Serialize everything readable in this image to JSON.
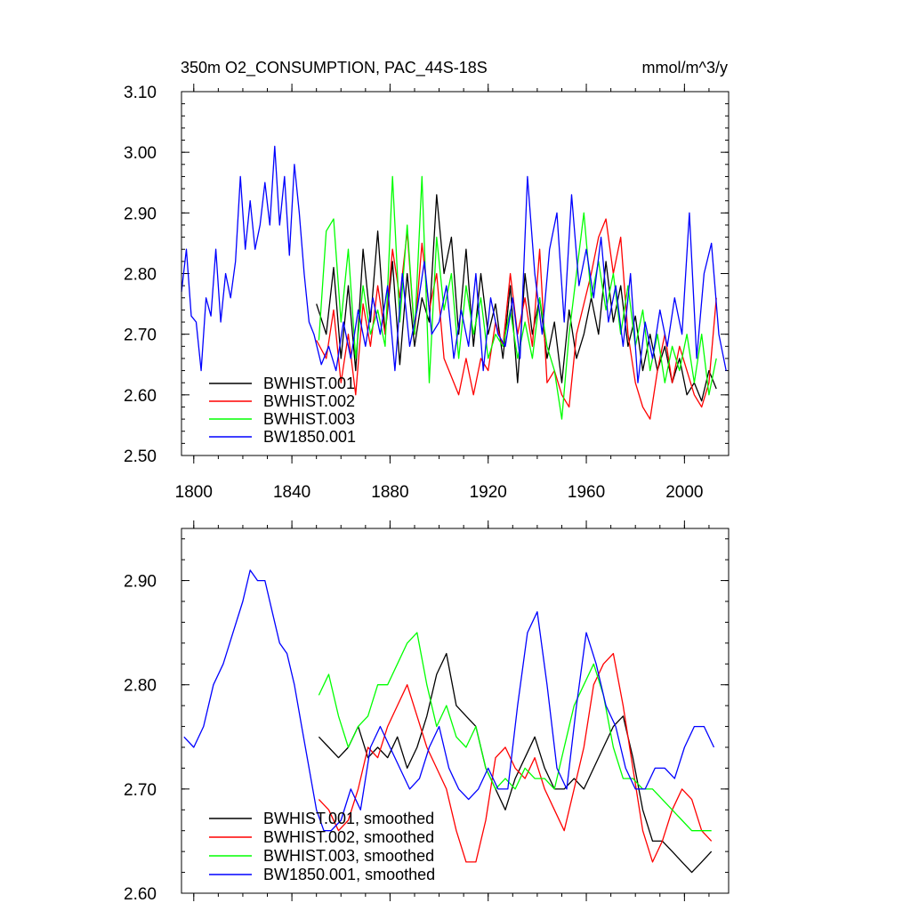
{
  "chart_data": [
    {
      "type": "line",
      "title": "350m O2_CONSUMPTION, PAC_44S-18S",
      "units_label": "mmol/m^3/y",
      "xlim": [
        1795,
        2018
      ],
      "ylim": [
        2.5,
        3.1
      ],
      "xticks": [
        1800,
        1840,
        1880,
        1920,
        1960,
        2000
      ],
      "xtick_labels": [
        "1800",
        "1840",
        "1880",
        "1920",
        "1960",
        "2000"
      ],
      "yticks": [
        2.5,
        2.6,
        2.7,
        2.8,
        2.9,
        3.0,
        3.1
      ],
      "ytick_labels": [
        "2.50",
        "2.60",
        "2.70",
        "2.80",
        "2.90",
        "3.00",
        "3.10"
      ],
      "legend_position": "bottom-left",
      "series": [
        {
          "name": "BWHIST.001",
          "color": "#000000",
          "x": [
            1850,
            1854,
            1857,
            1860,
            1863,
            1866,
            1869,
            1872,
            1875,
            1878,
            1881,
            1884,
            1887,
            1890,
            1893,
            1896,
            1899,
            1902,
            1905,
            1908,
            1911,
            1914,
            1917,
            1920,
            1923,
            1926,
            1929,
            1932,
            1935,
            1938,
            1941,
            1944,
            1947,
            1950,
            1953,
            1956,
            1959,
            1962,
            1965,
            1968,
            1971,
            1974,
            1977,
            1980,
            1983,
            1986,
            1989,
            1992,
            1995,
            1998,
            2001,
            2004,
            2007,
            2010,
            2013
          ],
          "values": [
            2.75,
            2.7,
            2.81,
            2.66,
            2.78,
            2.64,
            2.84,
            2.72,
            2.87,
            2.7,
            2.82,
            2.65,
            2.8,
            2.68,
            2.76,
            2.72,
            2.93,
            2.8,
            2.86,
            2.7,
            2.84,
            2.68,
            2.8,
            2.7,
            2.75,
            2.66,
            2.78,
            2.62,
            2.8,
            2.7,
            2.76,
            2.66,
            2.72,
            2.62,
            2.74,
            2.66,
            2.7,
            2.76,
            2.7,
            2.82,
            2.72,
            2.78,
            2.68,
            2.73,
            2.64,
            2.7,
            2.64,
            2.68,
            2.62,
            2.66,
            2.6,
            2.62,
            2.59,
            2.64,
            2.61
          ]
        },
        {
          "name": "BWHIST.002",
          "color": "#ff0000",
          "x": [
            1850,
            1854,
            1857,
            1860,
            1863,
            1866,
            1869,
            1872,
            1875,
            1878,
            1881,
            1884,
            1887,
            1890,
            1893,
            1896,
            1899,
            1902,
            1905,
            1908,
            1911,
            1914,
            1917,
            1920,
            1923,
            1926,
            1929,
            1932,
            1935,
            1938,
            1941,
            1944,
            1947,
            1950,
            1953,
            1956,
            1959,
            1962,
            1965,
            1968,
            1971,
            1974,
            1977,
            1980,
            1983,
            1986,
            1989,
            1992,
            1995,
            1998,
            2001,
            2004,
            2007,
            2010,
            2013
          ],
          "values": [
            2.69,
            2.66,
            2.74,
            2.62,
            2.7,
            2.6,
            2.75,
            2.68,
            2.78,
            2.7,
            2.84,
            2.76,
            2.87,
            2.7,
            2.85,
            2.74,
            2.8,
            2.66,
            2.63,
            2.6,
            2.66,
            2.6,
            2.66,
            2.64,
            2.72,
            2.68,
            2.8,
            2.7,
            2.76,
            2.68,
            2.84,
            2.62,
            2.64,
            2.6,
            2.58,
            2.7,
            2.75,
            2.8,
            2.86,
            2.89,
            2.8,
            2.86,
            2.7,
            2.62,
            2.58,
            2.56,
            2.64,
            2.7,
            2.62,
            2.68,
            2.64,
            2.6,
            2.58,
            2.62,
            2.76
          ]
        },
        {
          "name": "BWHIST.003",
          "color": "#00ff00",
          "x": [
            1851,
            1854,
            1857,
            1860,
            1863,
            1866,
            1869,
            1872,
            1875,
            1878,
            1881,
            1884,
            1887,
            1890,
            1893,
            1896,
            1899,
            1902,
            1905,
            1908,
            1911,
            1914,
            1917,
            1920,
            1923,
            1926,
            1929,
            1932,
            1935,
            1938,
            1941,
            1944,
            1947,
            1950,
            1953,
            1956,
            1959,
            1962,
            1965,
            1968,
            1971,
            1974,
            1977,
            1980,
            1983,
            1986,
            1989,
            1992,
            1995,
            1998,
            2001,
            2004,
            2007,
            2010,
            2013
          ],
          "values": [
            2.69,
            2.87,
            2.89,
            2.72,
            2.84,
            2.66,
            2.78,
            2.7,
            2.74,
            2.68,
            2.96,
            2.72,
            2.88,
            2.7,
            2.96,
            2.62,
            2.86,
            2.74,
            2.8,
            2.66,
            2.78,
            2.7,
            2.76,
            2.66,
            2.7,
            2.68,
            2.74,
            2.66,
            2.72,
            2.66,
            2.76,
            2.68,
            2.64,
            2.56,
            2.7,
            2.8,
            2.9,
            2.76,
            2.82,
            2.74,
            2.8,
            2.7,
            2.78,
            2.68,
            2.74,
            2.64,
            2.7,
            2.62,
            2.68,
            2.64,
            2.7,
            2.62,
            2.7,
            2.6,
            2.66
          ]
        },
        {
          "name": "BW1850.001",
          "color": "#0000ff",
          "x": [
            1795,
            1797,
            1799,
            1801,
            1803,
            1805,
            1807,
            1809,
            1811,
            1813,
            1815,
            1817,
            1819,
            1821,
            1823,
            1825,
            1827,
            1829,
            1831,
            1833,
            1835,
            1837,
            1839,
            1841,
            1843,
            1845,
            1847,
            1849,
            1852,
            1855,
            1858,
            1861,
            1864,
            1867,
            1870,
            1873,
            1876,
            1879,
            1882,
            1885,
            1888,
            1891,
            1894,
            1897,
            1900,
            1903,
            1906,
            1909,
            1912,
            1915,
            1918,
            1921,
            1924,
            1927,
            1930,
            1933,
            1936,
            1939,
            1942,
            1945,
            1948,
            1951,
            1954,
            1957,
            1960,
            1963,
            1966,
            1969,
            1972,
            1975,
            1978,
            1981,
            1984,
            1987,
            1990,
            1993,
            1996,
            1999,
            2002,
            2005,
            2008,
            2011,
            2014,
            2017
          ],
          "values": [
            2.77,
            2.84,
            2.73,
            2.72,
            2.64,
            2.76,
            2.73,
            2.84,
            2.72,
            2.8,
            2.76,
            2.82,
            2.96,
            2.84,
            2.92,
            2.84,
            2.88,
            2.95,
            2.88,
            3.01,
            2.88,
            2.96,
            2.83,
            2.98,
            2.9,
            2.8,
            2.72,
            2.7,
            2.65,
            2.68,
            2.64,
            2.72,
            2.66,
            2.74,
            2.68,
            2.76,
            2.7,
            2.78,
            2.64,
            2.8,
            2.68,
            2.74,
            2.82,
            2.7,
            2.72,
            2.78,
            2.66,
            2.74,
            2.68,
            2.8,
            2.64,
            2.76,
            2.7,
            2.68,
            2.76,
            2.66,
            2.96,
            2.8,
            2.7,
            2.84,
            2.9,
            2.72,
            2.93,
            2.78,
            2.84,
            2.76,
            2.86,
            2.72,
            2.78,
            2.68,
            2.8,
            2.62,
            2.72,
            2.66,
            2.74,
            2.68,
            2.76,
            2.7,
            2.9,
            2.66,
            2.8,
            2.85,
            2.7,
            2.64
          ]
        }
      ]
    },
    {
      "type": "line",
      "title": "",
      "xlim": [
        1795,
        2018
      ],
      "ylim": [
        2.6,
        2.95
      ],
      "xticks": [
        1800,
        1840,
        1880,
        1920,
        1960,
        2000
      ],
      "yticks": [
        2.6,
        2.7,
        2.8,
        2.9
      ],
      "ytick_labels": [
        "2.60",
        "2.70",
        "2.80",
        "2.90"
      ],
      "legend_position": "bottom-left",
      "series": [
        {
          "name": "BWHIST.001, smoothed",
          "color": "#000000",
          "x": [
            1851,
            1855,
            1859,
            1863,
            1867,
            1871,
            1875,
            1879,
            1883,
            1887,
            1891,
            1895,
            1899,
            1903,
            1907,
            1911,
            1915,
            1919,
            1923,
            1927,
            1931,
            1935,
            1939,
            1943,
            1947,
            1951,
            1955,
            1959,
            1963,
            1967,
            1971,
            1975,
            1979,
            1983,
            1987,
            1991,
            1995,
            1999,
            2003,
            2007,
            2011
          ],
          "values": [
            2.75,
            2.74,
            2.73,
            2.74,
            2.76,
            2.73,
            2.74,
            2.73,
            2.75,
            2.72,
            2.74,
            2.77,
            2.81,
            2.83,
            2.78,
            2.77,
            2.76,
            2.72,
            2.7,
            2.68,
            2.71,
            2.73,
            2.75,
            2.72,
            2.7,
            2.7,
            2.71,
            2.7,
            2.72,
            2.74,
            2.76,
            2.77,
            2.73,
            2.68,
            2.65,
            2.65,
            2.64,
            2.63,
            2.62,
            2.63,
            2.64
          ]
        },
        {
          "name": "BWHIST.002, smoothed",
          "color": "#ff0000",
          "x": [
            1851,
            1855,
            1859,
            1863,
            1867,
            1871,
            1875,
            1879,
            1883,
            1887,
            1891,
            1895,
            1899,
            1903,
            1907,
            1911,
            1915,
            1919,
            1923,
            1927,
            1931,
            1935,
            1939,
            1943,
            1947,
            1951,
            1955,
            1959,
            1963,
            1967,
            1971,
            1975,
            1979,
            1983,
            1987,
            1991,
            1995,
            1999,
            2003,
            2007,
            2011
          ],
          "values": [
            2.69,
            2.68,
            2.66,
            2.67,
            2.7,
            2.74,
            2.73,
            2.76,
            2.78,
            2.8,
            2.77,
            2.74,
            2.72,
            2.7,
            2.66,
            2.63,
            2.63,
            2.67,
            2.73,
            2.74,
            2.72,
            2.71,
            2.73,
            2.7,
            2.68,
            2.66,
            2.7,
            2.74,
            2.8,
            2.82,
            2.83,
            2.78,
            2.72,
            2.66,
            2.63,
            2.65,
            2.68,
            2.7,
            2.69,
            2.66,
            2.65
          ]
        },
        {
          "name": "BWHIST.003, smoothed",
          "color": "#00ff00",
          "x": [
            1851,
            1855,
            1859,
            1863,
            1867,
            1871,
            1875,
            1879,
            1883,
            1887,
            1891,
            1895,
            1899,
            1903,
            1907,
            1911,
            1915,
            1919,
            1923,
            1927,
            1931,
            1935,
            1939,
            1943,
            1947,
            1951,
            1955,
            1959,
            1963,
            1967,
            1971,
            1975,
            1979,
            1983,
            1987,
            1991,
            1995,
            1999,
            2003,
            2007,
            2011
          ],
          "values": [
            2.79,
            2.81,
            2.77,
            2.74,
            2.76,
            2.77,
            2.8,
            2.8,
            2.82,
            2.84,
            2.85,
            2.8,
            2.76,
            2.78,
            2.75,
            2.74,
            2.76,
            2.72,
            2.7,
            2.71,
            2.7,
            2.72,
            2.71,
            2.71,
            2.7,
            2.74,
            2.78,
            2.8,
            2.82,
            2.79,
            2.74,
            2.71,
            2.71,
            2.7,
            2.7,
            2.69,
            2.68,
            2.67,
            2.66,
            2.66,
            2.66
          ]
        },
        {
          "name": "BW1850.001, smoothed",
          "color": "#0000ff",
          "x": [
            1796,
            1800,
            1804,
            1808,
            1812,
            1816,
            1820,
            1823,
            1826,
            1829,
            1832,
            1835,
            1838,
            1841,
            1844,
            1847,
            1850,
            1853,
            1856,
            1860,
            1864,
            1868,
            1872,
            1876,
            1880,
            1884,
            1888,
            1892,
            1896,
            1900,
            1904,
            1908,
            1912,
            1916,
            1920,
            1924,
            1928,
            1932,
            1936,
            1940,
            1944,
            1948,
            1952,
            1956,
            1960,
            1964,
            1968,
            1972,
            1976,
            1980,
            1984,
            1988,
            1992,
            1996,
            2000,
            2004,
            2008,
            2012
          ],
          "values": [
            2.75,
            2.74,
            2.76,
            2.8,
            2.82,
            2.85,
            2.88,
            2.91,
            2.9,
            2.9,
            2.87,
            2.84,
            2.83,
            2.8,
            2.76,
            2.72,
            2.68,
            2.66,
            2.66,
            2.67,
            2.7,
            2.68,
            2.74,
            2.76,
            2.74,
            2.72,
            2.7,
            2.71,
            2.74,
            2.76,
            2.72,
            2.7,
            2.69,
            2.7,
            2.72,
            2.7,
            2.7,
            2.78,
            2.85,
            2.87,
            2.8,
            2.72,
            2.7,
            2.78,
            2.85,
            2.82,
            2.78,
            2.76,
            2.72,
            2.7,
            2.7,
            2.72,
            2.72,
            2.71,
            2.74,
            2.76,
            2.76,
            2.74
          ]
        }
      ]
    }
  ]
}
